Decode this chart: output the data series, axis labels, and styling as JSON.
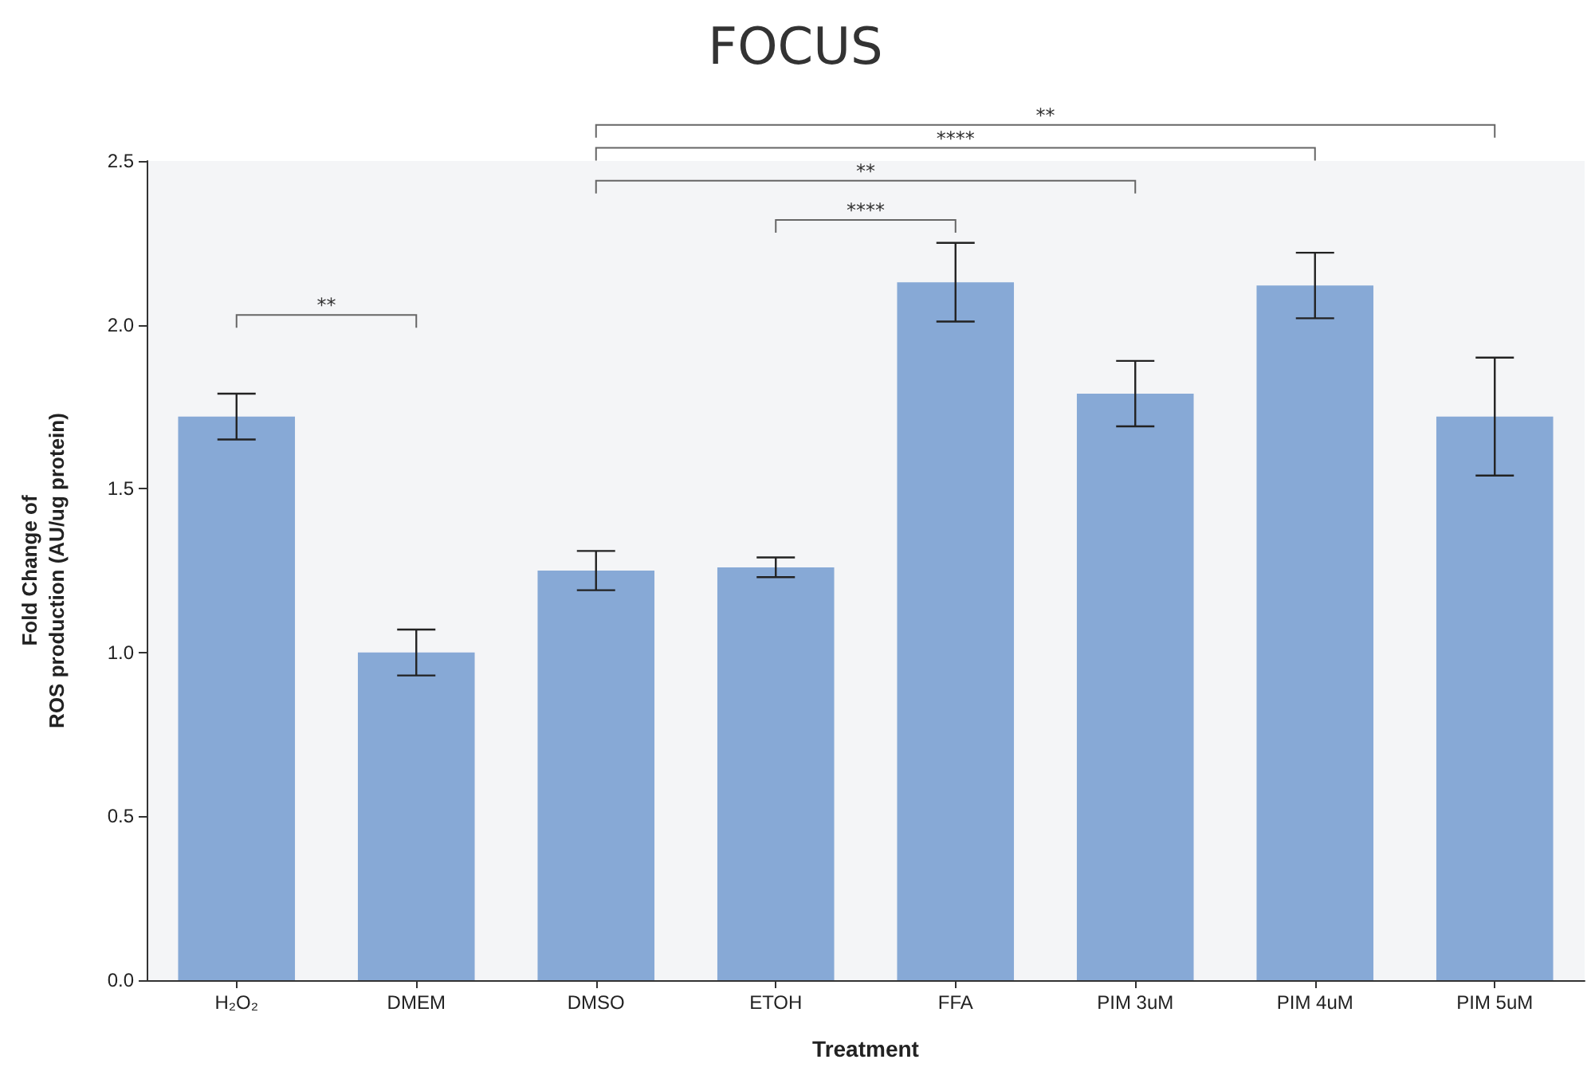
{
  "chart_data": {
    "type": "bar",
    "title": "FOCUS",
    "xlabel": "Treatment",
    "ylabel": "Fold Change of\nROS production (AU/ug protein)",
    "categories": [
      "H₂O₂",
      "DMEM",
      "DMSO",
      "ETOH",
      "FFA",
      "PIM 3uM",
      "PIM 4uM",
      "PIM 5uM"
    ],
    "values": [
      1.72,
      1.0,
      1.25,
      1.26,
      2.13,
      1.79,
      2.12,
      1.72
    ],
    "errors": [
      0.07,
      0.07,
      0.06,
      0.03,
      0.12,
      0.1,
      0.1,
      0.18
    ],
    "color": "#87a9d6",
    "ylim": [
      0,
      2.5
    ],
    "yticks": [
      {
        "value": 0,
        "label": "0.0"
      },
      0.5,
      {
        "value": 1,
        "label": "1.0"
      },
      1.5,
      {
        "value": 2,
        "label": "2.0"
      },
      2.5
    ],
    "grid": false,
    "annotations": [
      "**",
      "****",
      "**",
      "****",
      "**"
    ]
  }
}
